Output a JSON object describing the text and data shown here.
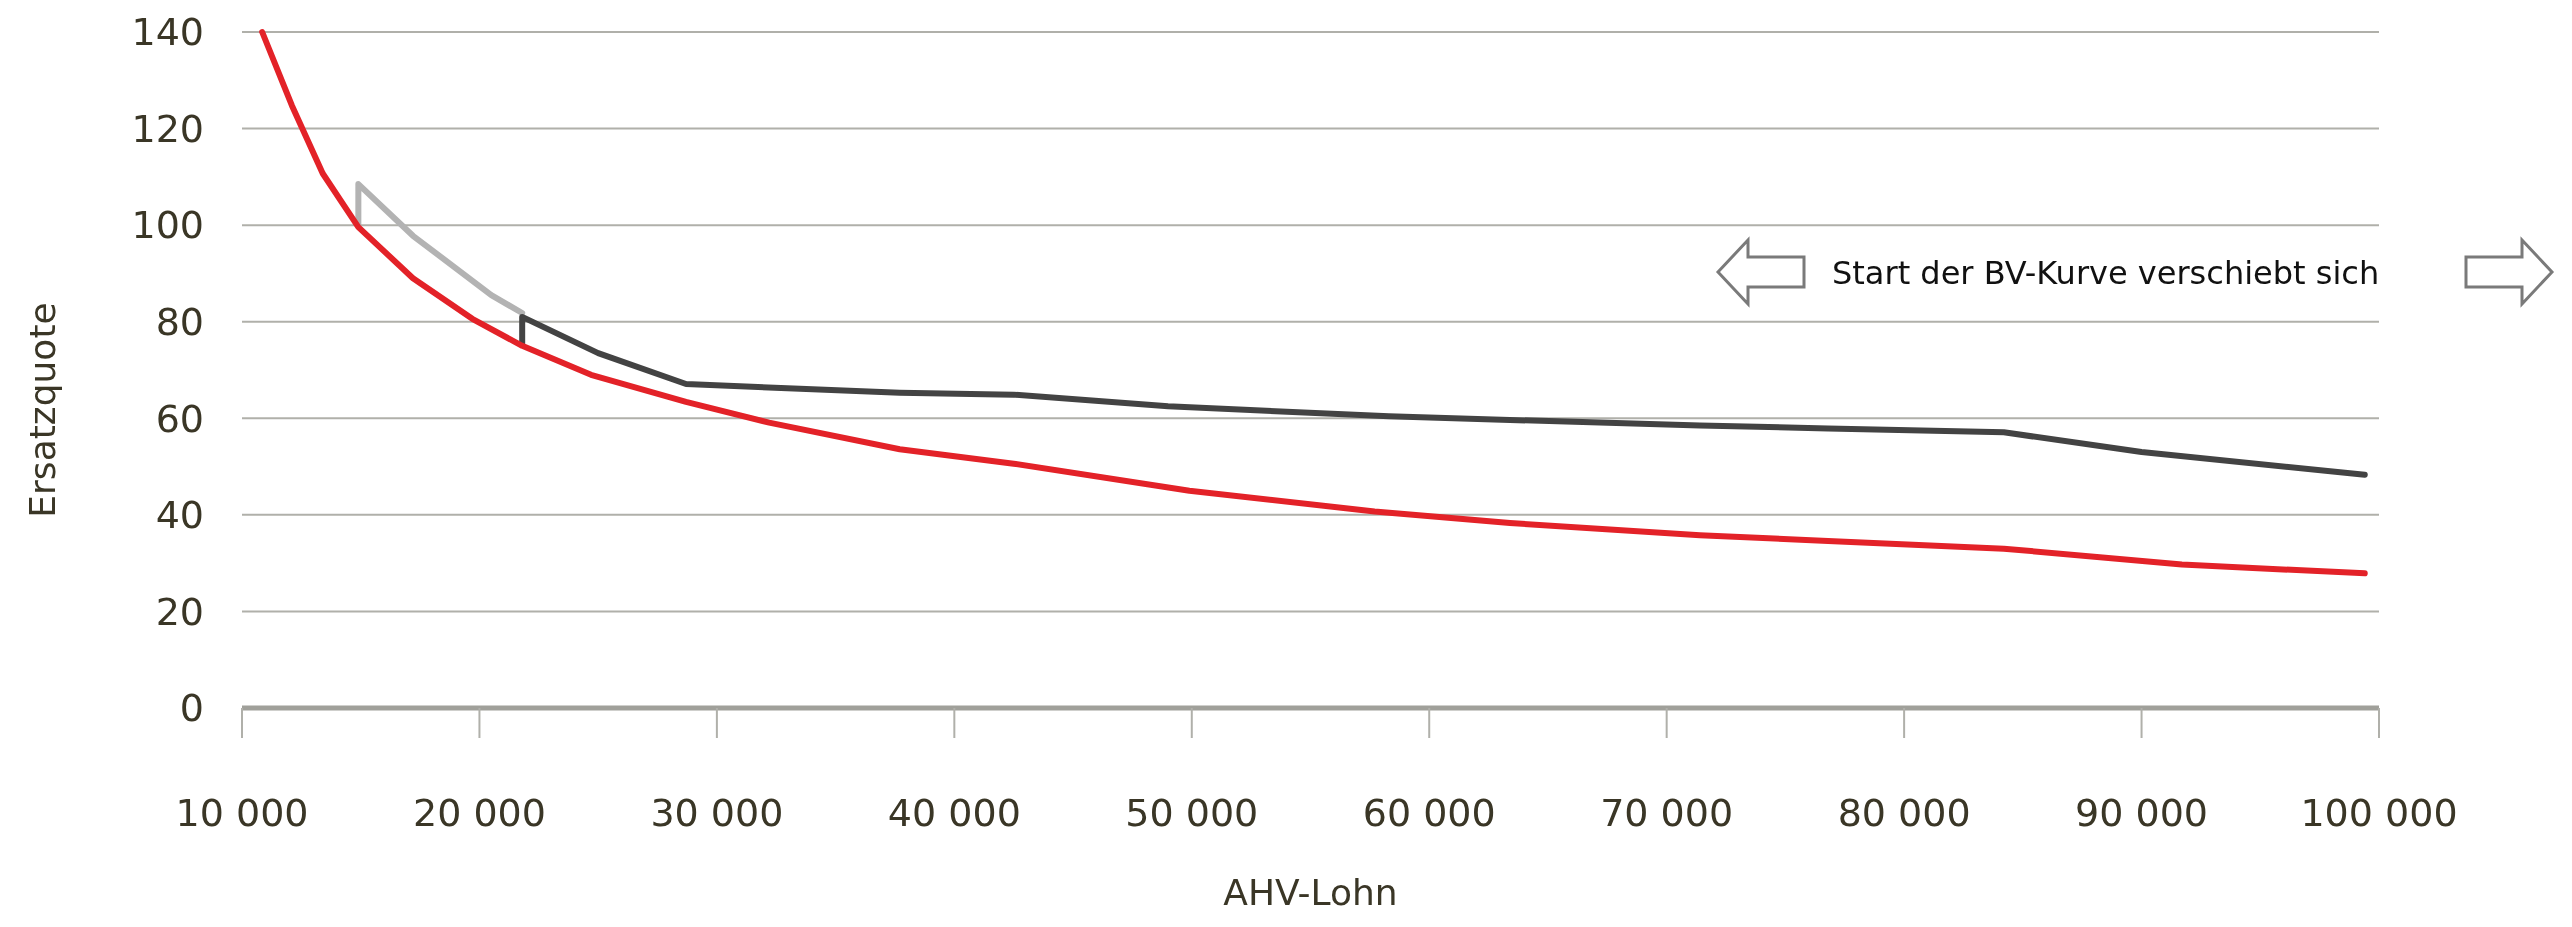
{
  "chart_data": {
    "type": "line",
    "xlabel": "AHV-Lohn",
    "ylabel": "Ersatzquote",
    "xlim": [
      10000,
      100000
    ],
    "ylim": [
      0,
      140
    ],
    "xticks": [
      {
        "value": 10000,
        "label": "10 000"
      },
      {
        "value": 20000,
        "label": "20 000"
      },
      {
        "value": 30000,
        "label": "30 000"
      },
      {
        "value": 40000,
        "label": "40 000"
      },
      {
        "value": 50000,
        "label": "50 000"
      },
      {
        "value": 60000,
        "label": "60 000"
      },
      {
        "value": 70000,
        "label": "70 000"
      },
      {
        "value": 80000,
        "label": "80 000"
      },
      {
        "value": 90000,
        "label": "90 000"
      },
      {
        "value": 100000,
        "label": "100 000"
      }
    ],
    "yticks": [
      0,
      20,
      40,
      60,
      80,
      100,
      120,
      140
    ],
    "grid": "y",
    "line_style": "solid",
    "marker": "none",
    "annotations": [
      "Start der BV-Kurve verschiebt sich"
    ],
    "series": [
      {
        "color": "#b3b3b3",
        "x": [
          14900,
          14900,
          17200,
          20500,
          21800
        ],
        "values": [
          100,
          108.5,
          97.8,
          85.5,
          81.8
        ]
      },
      {
        "color": "#434343",
        "x": [
          21800,
          21800,
          25000,
          28700,
          33500,
          37700,
          42500,
          49000,
          58300,
          71400,
          76800,
          84200,
          90000,
          99400
        ],
        "values": [
          75.5,
          81,
          73.5,
          67.1,
          66.1,
          65.3,
          64.9,
          62.5,
          60.4,
          58.5,
          57.9,
          57.1,
          53,
          48.3
        ]
      },
      {
        "color": "#e32228",
        "x": [
          10850,
          12100,
          13400,
          14900,
          17200,
          19700,
          21800,
          24700,
          28700,
          32200,
          37700,
          42500,
          49900,
          57700,
          63400,
          71400,
          76800,
          84200,
          91700,
          99400
        ],
        "values": [
          140,
          124.8,
          110.7,
          99.6,
          89,
          80.6,
          75,
          69,
          63.4,
          59.1,
          53.6,
          50.6,
          45,
          40.7,
          38.3,
          35.8,
          34.6,
          33,
          29.7,
          27.9
        ]
      }
    ]
  }
}
